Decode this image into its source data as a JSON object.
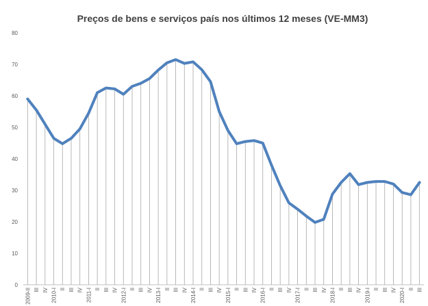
{
  "chart_data": {
    "type": "line",
    "title": "Preços de bens e serviços país nos últimos 12 meses (VE-MM3)",
    "categories": [
      "2009-II",
      "III",
      "IV",
      "2010-I",
      "II",
      "III",
      "IV",
      "2011-I",
      "II",
      "III",
      "IV",
      "2012-I",
      "II",
      "III",
      "IV",
      "2013-I",
      "II",
      "III",
      "IV",
      "2014-I",
      "II",
      "III",
      "IV",
      "2015-I",
      "II",
      "III",
      "IV",
      "2016-I",
      "II",
      "III",
      "IV",
      "2017-I",
      "II",
      "III",
      "IV",
      "2018-I",
      "II",
      "III",
      "IV",
      "2019-I",
      "II",
      "III",
      "IV",
      "2020-I",
      "II",
      "III"
    ],
    "values": [
      59,
      55.5,
      51,
      46.5,
      44.8,
      46.5,
      49.5,
      54.5,
      61,
      62.5,
      62.2,
      60.5,
      63,
      64,
      65.5,
      68.2,
      70.5,
      71.5,
      70.3,
      70.8,
      68.3,
      64.5,
      55,
      49,
      44.8,
      45.5,
      45.8,
      45,
      38,
      31.5,
      26,
      24,
      21.8,
      19.8,
      20.8,
      28.8,
      32.5,
      35.3,
      31.8,
      32.5,
      32.8,
      32.8,
      32,
      29.3,
      28.6,
      32.5
    ],
    "color": "#4f81bd",
    "ylim": [
      0,
      80
    ],
    "yticks": [
      0,
      10,
      20,
      30,
      40,
      50,
      60,
      70,
      80
    ]
  }
}
